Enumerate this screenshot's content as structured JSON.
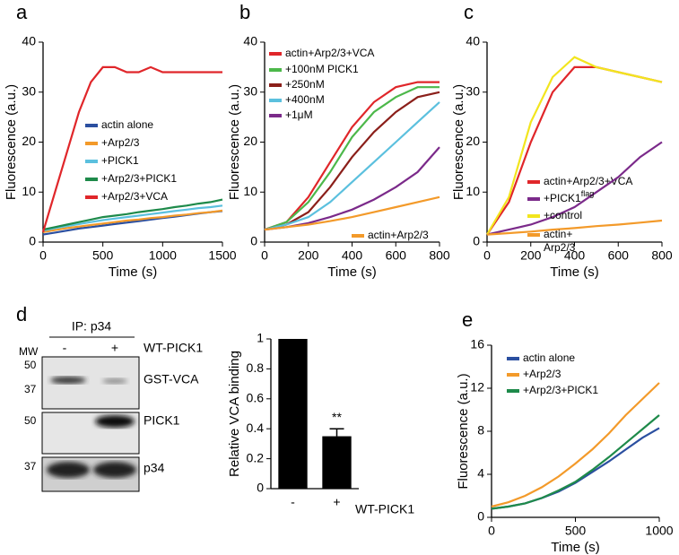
{
  "chart_data": [
    {
      "type": "line",
      "panel": "a",
      "xlabel": "Time (s)",
      "ylabel": "Fluorescence (a.u.)",
      "x": [
        0,
        100,
        200,
        300,
        400,
        500,
        600,
        700,
        800,
        900,
        1000,
        1100,
        1200,
        1300,
        1400,
        1500
      ],
      "xlim": [
        0,
        1500
      ],
      "xticks": [
        0,
        500,
        1000,
        1500
      ],
      "ylim": [
        0,
        40
      ],
      "yticks": [
        0,
        10,
        20,
        30,
        40
      ],
      "series": [
        {
          "name": "actin alone",
          "color": "#2b4fa0",
          "values": [
            1.5,
            1.9,
            2.3,
            2.7,
            3,
            3.3,
            3.6,
            3.9,
            4.2,
            4.5,
            4.8,
            5.1,
            5.4,
            5.7,
            6,
            6.2
          ]
        },
        {
          "name": "+Arp2/3",
          "color": "#f39a2a",
          "values": [
            2,
            2.4,
            2.8,
            3.1,
            3.4,
            3.7,
            4,
            4.3,
            4.5,
            4.8,
            5,
            5.3,
            5.5,
            5.8,
            6,
            6.3
          ]
        },
        {
          "name": "+PICK1",
          "color": "#5bc0de",
          "values": [
            2.3,
            2.8,
            3.2,
            3.6,
            4,
            4.4,
            4.7,
            5,
            5.3,
            5.6,
            5.9,
            6.2,
            6.5,
            6.8,
            7,
            7.3
          ]
        },
        {
          "name": "+Arp2/3+PICK1",
          "color": "#1e8a4a",
          "values": [
            2.5,
            3,
            3.5,
            4,
            4.5,
            5,
            5.3,
            5.6,
            6,
            6.3,
            6.6,
            7,
            7.3,
            7.7,
            8,
            8.5
          ]
        },
        {
          "name": "+Arp2/3+VCA",
          "color": "#e0262a",
          "values": [
            2,
            10,
            18,
            26,
            32,
            35,
            35,
            34,
            34,
            35,
            34,
            34,
            34,
            34,
            34,
            34
          ]
        }
      ]
    },
    {
      "type": "line",
      "panel": "b",
      "xlabel": "Time (s)",
      "ylabel": "Fluorescence (a.u.)",
      "x": [
        0,
        100,
        200,
        300,
        400,
        500,
        600,
        700,
        800
      ],
      "xlim": [
        0,
        800
      ],
      "xticks": [
        0,
        200,
        400,
        600,
        800
      ],
      "ylim": [
        0,
        40
      ],
      "yticks": [
        0,
        10,
        20,
        30,
        40
      ],
      "series": [
        {
          "name": "actin+Arp2/3+VCA",
          "color": "#e0262a",
          "values": [
            2.5,
            4,
            9,
            16,
            23,
            28,
            31,
            32,
            32
          ]
        },
        {
          "name": "+100nM PICK1",
          "color": "#4cb84a",
          "values": [
            2.5,
            4,
            8,
            14,
            21,
            26,
            29,
            31,
            31
          ]
        },
        {
          "name": "+250nM",
          "color": "#8b1f1a",
          "values": [
            2.5,
            3.5,
            6,
            11,
            17,
            22,
            26,
            29,
            30
          ]
        },
        {
          "name": "+400nM",
          "color": "#5bc0de",
          "values": [
            2.5,
            3.5,
            5,
            8,
            12,
            16,
            20,
            24,
            28
          ]
        },
        {
          "name": "+1μM",
          "color": "#7b2a8a",
          "values": [
            2.5,
            3,
            3.8,
            5,
            6.5,
            8.5,
            11,
            14,
            19
          ]
        },
        {
          "name": "actin+Arp2/3",
          "color": "#f39a2a",
          "values": [
            2.5,
            3,
            3.5,
            4.2,
            5,
            6,
            7,
            8,
            9
          ]
        }
      ]
    },
    {
      "type": "line",
      "panel": "c",
      "xlabel": "Time (s)",
      "ylabel": "Fluorescence (a.u.)",
      "x": [
        0,
        100,
        200,
        300,
        400,
        500,
        600,
        700,
        800
      ],
      "xlim": [
        0,
        800
      ],
      "xticks": [
        0,
        200,
        400,
        600,
        800
      ],
      "ylim": [
        0,
        40
      ],
      "yticks": [
        0,
        10,
        20,
        30,
        40
      ],
      "series": [
        {
          "name": "actin+Arp2/3+VCA",
          "color": "#e0262a",
          "values": [
            1.5,
            8,
            20,
            30,
            35,
            35,
            34,
            33,
            32
          ]
        },
        {
          "name": "+PICK1",
          "name_sup": "flag",
          "color": "#7b2a8a",
          "values": [
            1.5,
            2.5,
            3.5,
            5,
            7,
            10,
            13,
            17,
            20
          ]
        },
        {
          "name": "+control",
          "color": "#f2e51e",
          "values": [
            1.5,
            9,
            24,
            33,
            37,
            35,
            34,
            33,
            32
          ]
        },
        {
          "name": "actin+\nArp2/3",
          "color": "#f39a2a",
          "values": [
            1.5,
            1.8,
            2.1,
            2.5,
            2.8,
            3.2,
            3.5,
            3.9,
            4.3
          ]
        }
      ]
    },
    {
      "type": "bar",
      "xlabel": "WT-PICK1",
      "ylabel": "Relative VCA binding",
      "annotation": "**",
      "categories": [
        "-",
        "+"
      ],
      "values": [
        1,
        0.35
      ],
      "errors": [
        null,
        0.05
      ],
      "color": "#000000",
      "ylim": [
        0,
        1
      ],
      "yticks": [
        0,
        0.2,
        0.4,
        0.6,
        0.8,
        1
      ]
    },
    {
      "type": "line",
      "panel": "e",
      "xlabel": "Time (s)",
      "ylabel": "Fluorescence (a.u.)",
      "x": [
        0,
        100,
        200,
        300,
        400,
        500,
        600,
        700,
        800,
        900,
        1000
      ],
      "xlim": [
        0,
        1000
      ],
      "xticks": [
        0,
        500,
        1000
      ],
      "ylim": [
        0,
        16
      ],
      "yticks": [
        0,
        4,
        8,
        12,
        16
      ],
      "series": [
        {
          "name": "actin alone",
          "color": "#2b4fa0",
          "values": [
            0.8,
            1,
            1.3,
            1.8,
            2.4,
            3.2,
            4.2,
            5.2,
            6.3,
            7.4,
            8.3
          ]
        },
        {
          "name": "+Arp2/3",
          "color": "#f39a2a",
          "values": [
            1,
            1.4,
            2,
            2.8,
            3.8,
            5,
            6.3,
            7.8,
            9.5,
            11,
            12.5
          ]
        },
        {
          "name": "+Arp2/3+PICK1",
          "color": "#1e8a4a",
          "values": [
            0.8,
            1,
            1.3,
            1.8,
            2.5,
            3.3,
            4.4,
            5.6,
            6.9,
            8.2,
            9.5
          ]
        }
      ]
    }
  ],
  "blot": {
    "panel": "d",
    "header": "IP: p34",
    "lanes": [
      "-",
      "+"
    ],
    "lane_label": "WT-PICK1",
    "mw": "MW",
    "rows": [
      {
        "markers": [
          "50",
          "37"
        ],
        "label": "GST-VCA"
      },
      {
        "markers": [
          "50"
        ],
        "label": "PICK1"
      },
      {
        "markers": [
          "37"
        ],
        "label": "p34"
      }
    ]
  }
}
